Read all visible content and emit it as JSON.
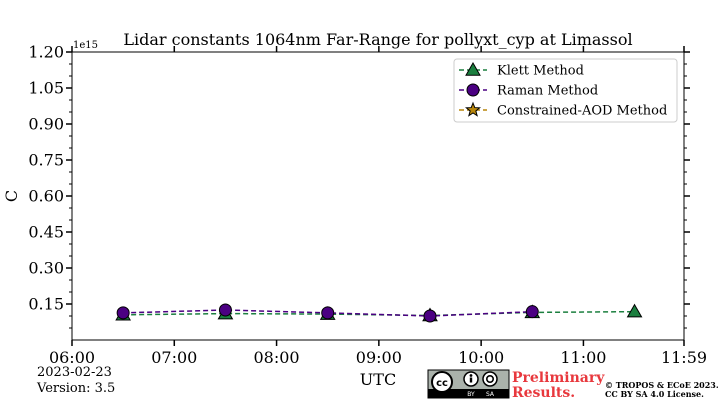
{
  "chart_data": {
    "type": "line",
    "title": "Lidar constants 1064nm Far-Range for pollyxt_cyp at Limassol",
    "xlabel": "UTC",
    "ylabel": "C",
    "y_exponent_label": "1e15",
    "x_range": [
      "06:00",
      "11:59"
    ],
    "x_ticks": [
      "06:00",
      "07:00",
      "08:00",
      "09:00",
      "10:00",
      "11:00",
      "11:59"
    ],
    "ylim": [
      0.0,
      1.2
    ],
    "y_ticks": [
      "1.20",
      "1.05",
      "0.90",
      "0.75",
      "0.60",
      "0.45",
      "0.30",
      "0.15"
    ],
    "legend_position": "upper-right",
    "grid": false,
    "series": [
      {
        "name": "Klett Method",
        "color": "#1b7f3f",
        "marker": "triangle",
        "line_style": "dashed",
        "points": [
          {
            "x": "06:30",
            "y": 0.105
          },
          {
            "x": "07:30",
            "y": 0.11
          },
          {
            "x": "08:30",
            "y": 0.108
          },
          {
            "x": "09:30",
            "y": 0.102
          },
          {
            "x": "10:30",
            "y": 0.115
          },
          {
            "x": "11:30",
            "y": 0.118
          }
        ]
      },
      {
        "name": "Raman Method",
        "color": "#4b0082",
        "marker": "circle",
        "line_style": "dashed",
        "points": [
          {
            "x": "06:30",
            "y": 0.113
          },
          {
            "x": "07:30",
            "y": 0.125
          },
          {
            "x": "08:30",
            "y": 0.113
          },
          {
            "x": "09:30",
            "y": 0.1
          },
          {
            "x": "10:30",
            "y": 0.118
          }
        ]
      },
      {
        "name": "Constrained-AOD Method",
        "color": "#b8860b",
        "marker": "star",
        "line_style": "dashed",
        "points": []
      }
    ]
  },
  "footer": {
    "date": "2023-02-23",
    "version": "Version: 3.5",
    "preliminary_line1": "Preliminary",
    "preliminary_line2": "Results.",
    "copyright_line1": "© TROPOS & ECoE 2023.",
    "copyright_line2": "CC BY SA 4.0 License.",
    "license_badge": {
      "cc": "cc",
      "by": "BY",
      "sa": "SA"
    }
  }
}
